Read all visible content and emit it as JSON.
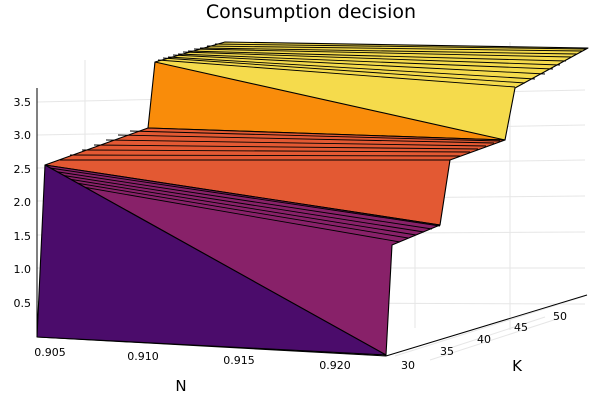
{
  "chart_data": {
    "type": "surface",
    "title": "Consumption decision",
    "xlabel": "N",
    "ylabel": "K",
    "zlabel": "",
    "x_ticks": [
      "0.905",
      "0.910",
      "0.915",
      "0.920"
    ],
    "y_ticks": [
      "30",
      "35",
      "40",
      "45",
      "50"
    ],
    "z_ticks": [
      "0.5",
      "1.0",
      "1.5",
      "2.0",
      "2.5",
      "3.0",
      "3.5"
    ],
    "xlim": [
      0.9035,
      0.9225
    ],
    "ylim": [
      28,
      55
    ],
    "zlim": [
      0.0,
      3.75
    ],
    "colormap": "inferno",
    "grid": true,
    "surface_levels": [
      {
        "name": "step-1",
        "z_at_x_min": 2.5,
        "z_at_x_max": 0.0,
        "color": "#4b0c6b"
      },
      {
        "name": "step-2",
        "z_at_x_min": 2.5,
        "z_at_x_max": 1.45,
        "color": "#882169"
      },
      {
        "name": "step-3",
        "z_at_x_min": 3.05,
        "z_at_x_max": 1.8,
        "color": "#e35933"
      },
      {
        "name": "step-4",
        "z_at_x_min": 3.7,
        "z_at_x_max": 3.0,
        "color": "#f98c0a"
      },
      {
        "name": "step-5",
        "z_at_x_min": 3.7,
        "z_at_x_max": 3.4,
        "color": "#f5db4c"
      }
    ]
  }
}
